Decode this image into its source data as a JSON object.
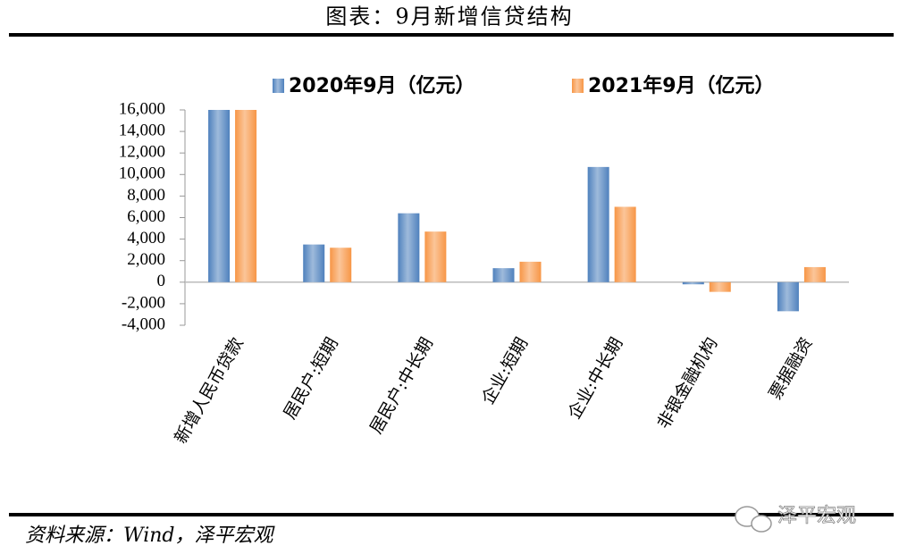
{
  "chart_data": {
    "type": "bar",
    "title": "图表：9月新增信贷结构",
    "categories": [
      "新增人民币贷款",
      "居民户:短期",
      "居民户:中长期",
      "企业:短期",
      "企业:中长期",
      "非银金融机构",
      "票据融资"
    ],
    "series": [
      {
        "name": "2020年9月（亿元）",
        "color": "#4f81bd",
        "values": [
          16000,
          3500,
          6400,
          1300,
          10700,
          -200,
          -2700
        ]
      },
      {
        "name": "2021年9月（亿元）",
        "color": "#f79646",
        "values": [
          16000,
          3200,
          4700,
          1900,
          7000,
          -900,
          1400
        ]
      }
    ],
    "ylim": [
      -4000,
      16000
    ],
    "yticks": [
      {
        "value": -4000,
        "label": "-4,000"
      },
      {
        "value": -2000,
        "label": "-2,000"
      },
      0,
      {
        "value": 2000,
        "label": "2,000"
      },
      {
        "value": 4000,
        "label": "4,000"
      },
      {
        "value": 6000,
        "label": "6,000"
      },
      {
        "value": 8000,
        "label": "8,000"
      },
      {
        "value": 10000,
        "label": "10,000"
      },
      {
        "value": 12000,
        "label": "12,000"
      },
      {
        "value": 14000,
        "label": "14,000"
      },
      {
        "value": 16000,
        "label": "16,000"
      }
    ],
    "grid": false,
    "source": "资料来源：Wind，泽平宏观",
    "watermark": "泽平宏观"
  }
}
